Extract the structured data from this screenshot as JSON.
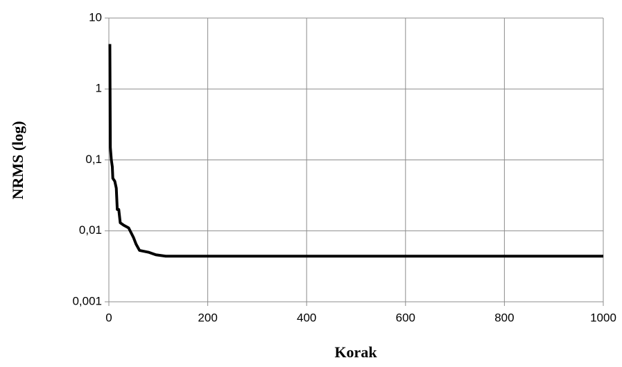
{
  "chart_data": {
    "type": "line",
    "xlabel": "Korak",
    "ylabel": "NRMS (log)",
    "x": [
      2,
      3,
      5,
      7,
      8,
      12,
      15,
      17,
      20,
      23,
      30,
      40,
      50,
      55,
      62,
      80,
      95,
      115,
      1000
    ],
    "values": [
      4.3,
      0.15,
      0.1,
      0.08,
      0.055,
      0.05,
      0.04,
      0.02,
      0.02,
      0.013,
      0.012,
      0.011,
      0.008,
      0.0065,
      0.0053,
      0.005,
      0.0046,
      0.0044,
      0.0044
    ],
    "color": "#000000",
    "xlim": [
      0,
      1000
    ],
    "xticks": [
      0,
      200,
      400,
      600,
      800,
      1000
    ],
    "ylim": [
      0.001,
      10
    ],
    "ylog": true,
    "yticks": [
      {
        "value": 0.001,
        "label": "0,001"
      },
      {
        "value": 0.01,
        "label": "0,01"
      },
      {
        "value": 0.1,
        "label": "0,1"
      },
      1,
      10
    ],
    "grid": true
  }
}
